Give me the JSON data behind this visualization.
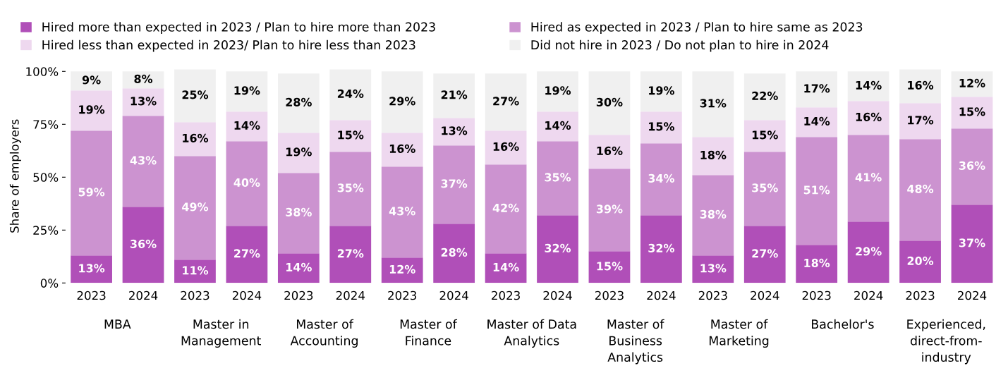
{
  "chart_data": {
    "type": "bar",
    "stacked": true,
    "ylabel": "Share of employers",
    "categories": [
      "2023",
      "2024",
      "2023",
      "2024",
      "2023",
      "2024",
      "2023",
      "2024",
      "2023",
      "2024",
      "2023",
      "2024",
      "2023",
      "2024",
      "2023",
      "2024",
      "2023",
      "2024"
    ],
    "annotations": [
      "MBA",
      "Master in\nManagement",
      "Master of\nAccounting",
      "Master of\nFinance",
      "Master of Data\nAnalytics",
      "Master of\nBusiness\nAnalytics",
      "Master of\nMarketing",
      "Bachelor's",
      "Experienced,\ndirect-from-\nindustry"
    ],
    "series": [
      {
        "name": "Hired more than expected in 2023 / Plan to hire more than 2023",
        "color": "#b04fb8",
        "values": [
          13,
          36,
          11,
          27,
          14,
          27,
          12,
          28,
          14,
          32,
          15,
          32,
          13,
          27,
          18,
          29,
          20,
          37
        ],
        "value_labels": [
          "13%",
          "36%",
          "11%",
          "27%",
          "14%",
          "27%",
          "12%",
          "28%",
          "14%",
          "32%",
          "15%",
          "32%",
          "13%",
          "27%",
          "18%",
          "29%",
          "20%",
          "37%"
        ]
      },
      {
        "name": "Hired as expected in 2023 / Plan to hire same as 2023",
        "color": "#cc93d0",
        "values": [
          59,
          43,
          49,
          40,
          38,
          35,
          43,
          37,
          42,
          35,
          39,
          34,
          38,
          35,
          51,
          41,
          48,
          36
        ],
        "value_labels": [
          "59%",
          "43%",
          "49%",
          "40%",
          "38%",
          "35%",
          "43%",
          "37%",
          "42%",
          "35%",
          "39%",
          "34%",
          "38%",
          "35%",
          "51%",
          "41%",
          "48%",
          "36%"
        ]
      },
      {
        "name": "Hired less than expected in 2023/ Plan to hire less than 2023",
        "color": "#eed8ef",
        "values": [
          19,
          13,
          16,
          14,
          19,
          15,
          16,
          13,
          16,
          14,
          16,
          15,
          18,
          15,
          14,
          16,
          17,
          15
        ],
        "value_labels": [
          "19%",
          "13%",
          "16%",
          "14%",
          "19%",
          "15%",
          "16%",
          "13%",
          "16%",
          "14%",
          "16%",
          "15%",
          "18%",
          "15%",
          "14%",
          "16%",
          "17%",
          "15%"
        ]
      },
      {
        "name": "Did not hire in 2023 / Do not plan to hire in 2024",
        "color": "#f0f0f0",
        "values": [
          9,
          8,
          25,
          19,
          28,
          24,
          29,
          21,
          27,
          19,
          30,
          19,
          31,
          22,
          17,
          14,
          16,
          12
        ],
        "value_labels": [
          "9%",
          "8%",
          "25%",
          "19%",
          "28%",
          "24%",
          "29%",
          "21%",
          "27%",
          "19%",
          "30%",
          "19%",
          "31%",
          "22%",
          "17%",
          "14%",
          "16%",
          "12%"
        ]
      }
    ],
    "ylim": [
      0,
      101
    ],
    "yticks": [
      {
        "value": 0,
        "label": "0%"
      },
      {
        "value": 25,
        "label": "25%"
      },
      {
        "value": 50,
        "label": "50%"
      },
      {
        "value": 75,
        "label": "75%"
      },
      {
        "value": 100,
        "label": "100%"
      }
    ],
    "grid": false,
    "legend": "top"
  }
}
